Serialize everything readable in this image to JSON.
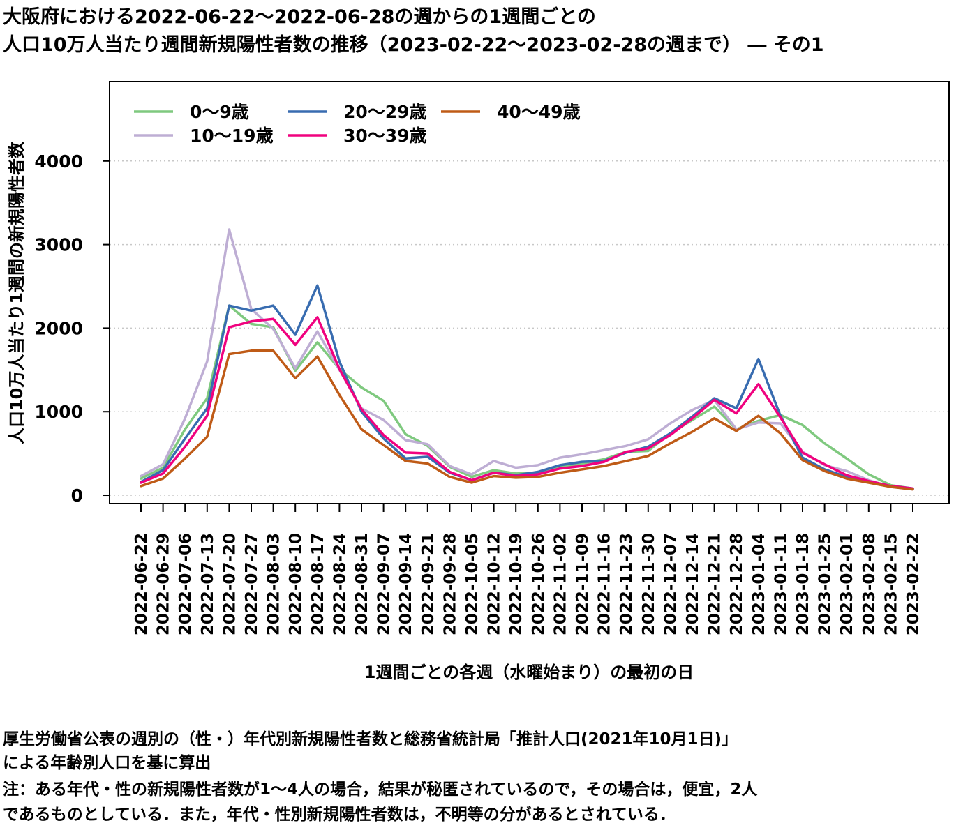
{
  "title": {
    "line1": "大阪府における2022-06-22〜2022-06-28の週からの1週間ごとの",
    "line2": "人口10万人当たり週間新規陽性者数の推移（2023-02-22〜2023-02-28の週まで） ― その1"
  },
  "notes": [
    "厚生労働省公表の週別の（性・）年代別新規陽性者数と総務省統計局「推計人口(2021年10月1日)」",
    "による年齢別人口を基に算出",
    "注：ある年代・性の新規陽性者数が1〜4人の場合，結果が秘匿されているので，その場合は，便宜，2人",
    "であるものとしている．また，年代・性別新規陽性者数は，不明等の分があるとされている．"
  ],
  "chart_data": {
    "type": "line",
    "xlabel": "1週間ごとの各週（水曜始まり）の最初の日",
    "ylabel": "人口10万人当たり1週間の新規陽性者数",
    "ylim": [
      -100,
      4950
    ],
    "yticks": [
      0,
      1000,
      2000,
      3000,
      4000
    ],
    "grid": "horizontal dotted",
    "legend_position": "top-left",
    "categories": [
      "2022-06-22",
      "2022-06-29",
      "2022-07-06",
      "2022-07-13",
      "2022-07-20",
      "2022-07-27",
      "2022-08-03",
      "2022-08-10",
      "2022-08-17",
      "2022-08-24",
      "2022-08-31",
      "2022-09-07",
      "2022-09-14",
      "2022-09-21",
      "2022-09-28",
      "2022-10-05",
      "2022-10-12",
      "2022-10-19",
      "2022-10-26",
      "2022-11-02",
      "2022-11-09",
      "2022-11-16",
      "2022-11-23",
      "2022-11-30",
      "2022-12-07",
      "2022-12-14",
      "2022-12-21",
      "2022-12-28",
      "2023-01-04",
      "2023-01-11",
      "2023-01-18",
      "2023-01-25",
      "2023-02-01",
      "2023-02-08",
      "2023-02-15",
      "2023-02-22"
    ],
    "series": [
      {
        "name": "0〜9歳",
        "color": "#7fc97f",
        "values": [
          200,
          330,
          790,
          1160,
          2270,
          2050,
          2010,
          1490,
          1830,
          1510,
          1290,
          1130,
          730,
          590,
          340,
          220,
          300,
          260,
          270,
          340,
          380,
          430,
          520,
          530,
          740,
          900,
          1060,
          790,
          890,
          960,
          840,
          620,
          440,
          250,
          120,
          80
        ]
      },
      {
        "name": "10〜19歳",
        "color": "#beaed4",
        "values": [
          230,
          370,
          920,
          1600,
          3180,
          2230,
          1990,
          1520,
          1960,
          1500,
          1040,
          900,
          660,
          610,
          350,
          250,
          410,
          330,
          360,
          450,
          490,
          540,
          590,
          670,
          860,
          1020,
          1140,
          790,
          870,
          860,
          520,
          360,
          290,
          180,
          100,
          70
        ]
      },
      {
        "name": "20〜29歳",
        "color": "#386cb0",
        "values": [
          160,
          300,
          680,
          1040,
          2270,
          2210,
          2270,
          1920,
          2510,
          1600,
          1000,
          680,
          440,
          460,
          270,
          180,
          270,
          240,
          280,
          360,
          400,
          410,
          510,
          580,
          740,
          940,
          1160,
          1040,
          1630,
          950,
          450,
          310,
          220,
          160,
          110,
          80
        ]
      },
      {
        "name": "30〜39歳",
        "color": "#f0027f",
        "values": [
          150,
          260,
          580,
          950,
          2010,
          2080,
          2110,
          1800,
          2130,
          1510,
          1030,
          720,
          510,
          500,
          280,
          180,
          270,
          230,
          250,
          320,
          350,
          400,
          520,
          560,
          720,
          920,
          1140,
          980,
          1330,
          930,
          510,
          370,
          240,
          170,
          110,
          80
        ]
      },
      {
        "name": "40〜49歳",
        "color": "#bf5b17",
        "values": [
          110,
          200,
          440,
          700,
          1690,
          1730,
          1730,
          1400,
          1660,
          1200,
          790,
          600,
          410,
          380,
          220,
          150,
          230,
          210,
          220,
          270,
          310,
          350,
          410,
          470,
          620,
          760,
          920,
          770,
          950,
          740,
          420,
          290,
          200,
          150,
          100,
          70
        ]
      }
    ]
  }
}
